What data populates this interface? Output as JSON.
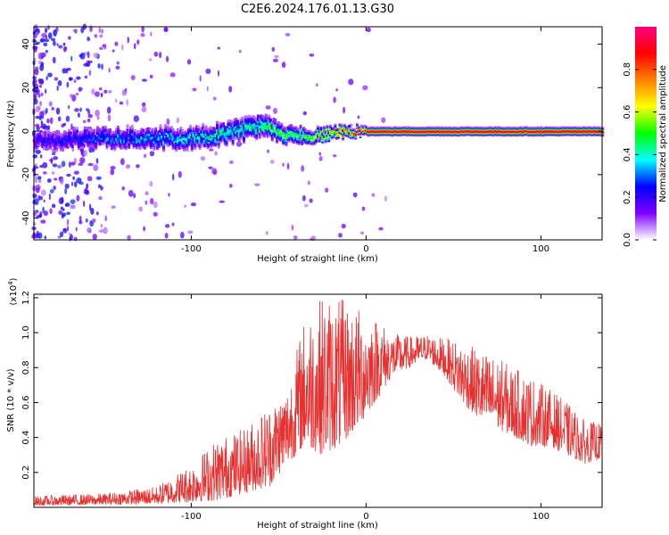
{
  "title": "C2E6.2024.176.01.13.G30",
  "chart_data": [
    {
      "type": "heatmap",
      "xlabel": "Height of straight line (km)",
      "ylabel": "Frequency (Hz)",
      "xlim": [
        -190,
        135
      ],
      "ylim": [
        -50,
        48
      ],
      "xticks": [
        -100,
        0,
        100
      ],
      "yticks": [
        -40,
        -20,
        0,
        20,
        40
      ],
      "grid": false,
      "description_of_signal": {
        "band_center_hz": [
          [
            -190,
            -4
          ],
          [
            -150,
            -3
          ],
          [
            -100,
            -3
          ],
          [
            -80,
            -1
          ],
          [
            -60,
            3
          ],
          [
            -45,
            -2
          ],
          [
            -30,
            -2
          ],
          [
            -15,
            0
          ],
          [
            0,
            0
          ],
          [
            20,
            0
          ],
          [
            60,
            0
          ],
          [
            135,
            0
          ]
        ],
        "band_halfwidth_hz": [
          [
            -190,
            4
          ],
          [
            -150,
            4
          ],
          [
            -100,
            4
          ],
          [
            -60,
            4
          ],
          [
            -40,
            3
          ],
          [
            -20,
            2
          ],
          [
            0,
            1.5
          ],
          [
            135,
            1.5
          ]
        ],
        "amplitude": [
          [
            -190,
            0.2
          ],
          [
            -150,
            0.3
          ],
          [
            -100,
            0.4
          ],
          [
            -60,
            0.5
          ],
          [
            -30,
            0.6
          ],
          [
            -15,
            0.85
          ],
          [
            0,
            0.95
          ],
          [
            135,
            0.95
          ]
        ]
      },
      "colorbar": {
        "label": "Normalized spectral amplitude",
        "ticks": [
          0.0,
          0.2,
          0.4,
          0.6,
          0.8
        ],
        "range": [
          0,
          1
        ],
        "colors": [
          "#ffffff",
          "#8000ff",
          "#0000ff",
          "#00ffff",
          "#00ff00",
          "#ffff00",
          "#ff8000",
          "#ff0000",
          "#ff0080"
        ]
      }
    },
    {
      "type": "line",
      "xlabel": "Height of straight line (km)",
      "ylabel": "SNR (10 * v/v)",
      "yscale_label": "(x10",
      "yscale_exponent": "4",
      "yscale_close": ")",
      "xlim": [
        -190,
        135
      ],
      "ylim": [
        0,
        12200
      ],
      "xticks": [
        -100,
        0,
        100
      ],
      "ytick_values": [
        2000,
        4000,
        6000,
        8000,
        10000,
        12000
      ],
      "ytick_labels": [
        "0.2",
        "0.4",
        "0.6",
        "0.8",
        "1.0",
        "1.2"
      ],
      "series": [
        {
          "color": "#e83030",
          "envelope": [
            [
              -190,
              100,
              650
            ],
            [
              -150,
              150,
              800
            ],
            [
              -120,
              200,
              1200
            ],
            [
              -100,
              300,
              2500
            ],
            [
              -85,
              400,
              4000
            ],
            [
              -70,
              800,
              4500
            ],
            [
              -55,
              1200,
              6000
            ],
            [
              -45,
              2500,
              7000
            ],
            [
              -35,
              3500,
              11000
            ],
            [
              -25,
              3000,
              12200
            ],
            [
              -15,
              3500,
              12000
            ],
            [
              -5,
              4500,
              11500
            ],
            [
              5,
              6000,
              11000
            ],
            [
              15,
              7500,
              10000
            ],
            [
              25,
              8000,
              9800
            ],
            [
              35,
              8500,
              9900
            ],
            [
              45,
              7500,
              9700
            ],
            [
              55,
              6000,
              9500
            ],
            [
              65,
              5000,
              9000
            ],
            [
              75,
              4500,
              8600
            ],
            [
              85,
              4000,
              8000
            ],
            [
              95,
              3500,
              7500
            ],
            [
              105,
              3500,
              6800
            ],
            [
              115,
              3000,
              6000
            ],
            [
              125,
              2500,
              5000
            ],
            [
              135,
              2800,
              4800
            ]
          ]
        }
      ]
    }
  ]
}
